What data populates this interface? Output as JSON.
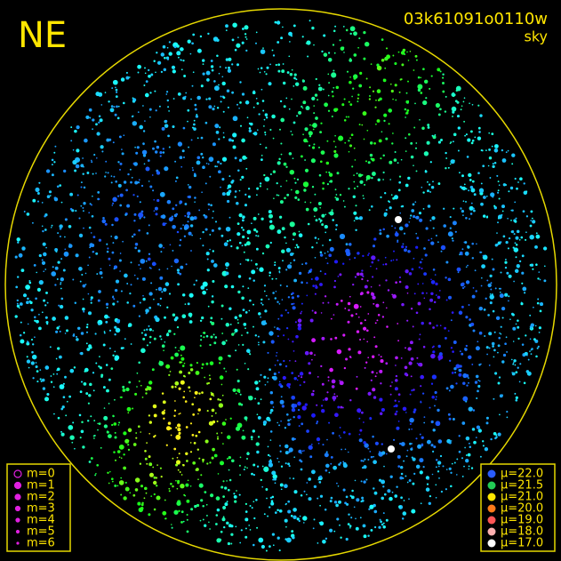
{
  "header": {
    "direction": "NE",
    "frame_id": "03k61091o0110w",
    "mode": "sky"
  },
  "legend_magnitude": {
    "items": [
      "m=0",
      "m=1",
      "m=2",
      "m=3",
      "m=4",
      "m=5",
      "m=6"
    ]
  },
  "legend_brightness": {
    "items": [
      {
        "label": "μ=22.0",
        "color": "#2a5cff"
      },
      {
        "label": "μ=21.5",
        "color": "#22cc55"
      },
      {
        "label": "μ=21.0",
        "color": "#ffe600"
      },
      {
        "label": "μ=20.0",
        "color": "#ff7a1a"
      },
      {
        "label": "μ=19.0",
        "color": "#ff5555"
      },
      {
        "label": "μ=18.0",
        "color": "#ffb0b0"
      },
      {
        "label": "μ=17.0",
        "color": "#ffffff"
      }
    ]
  }
}
